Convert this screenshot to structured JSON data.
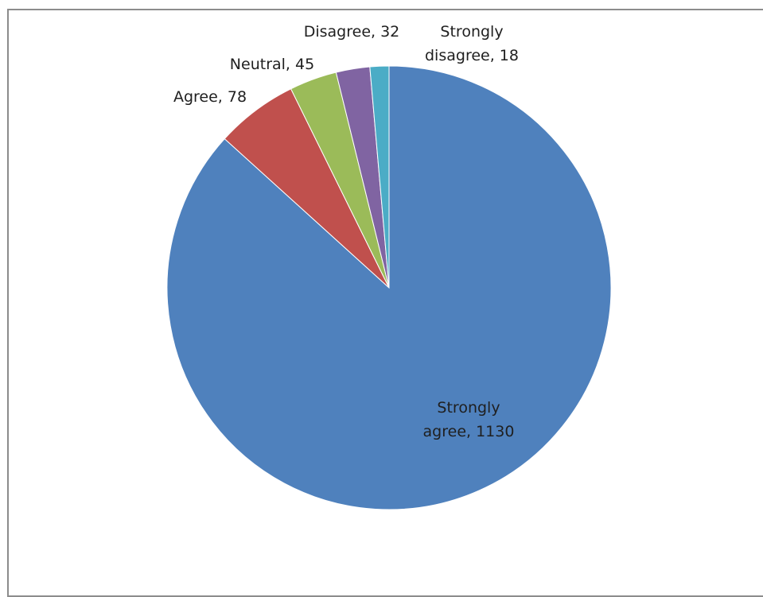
{
  "chart_data": {
    "type": "pie",
    "categories": [
      "Strongly agree",
      "Agree",
      "Neutral",
      "Disagree",
      "Strongly disagree"
    ],
    "values": [
      1130,
      78,
      45,
      32,
      18
    ],
    "colors": [
      "#4f81bd",
      "#c0504d",
      "#9bbb59",
      "#8064a2",
      "#4bacc6"
    ],
    "data_labels": [
      [
        "Strongly",
        "agree, 1130"
      ],
      [
        "Agree, 78"
      ],
      [
        "Neutral, 45"
      ],
      [
        "Disagree, 32"
      ],
      [
        "Strongly",
        "disagree, 18"
      ]
    ],
    "title": "",
    "legend": "none"
  }
}
